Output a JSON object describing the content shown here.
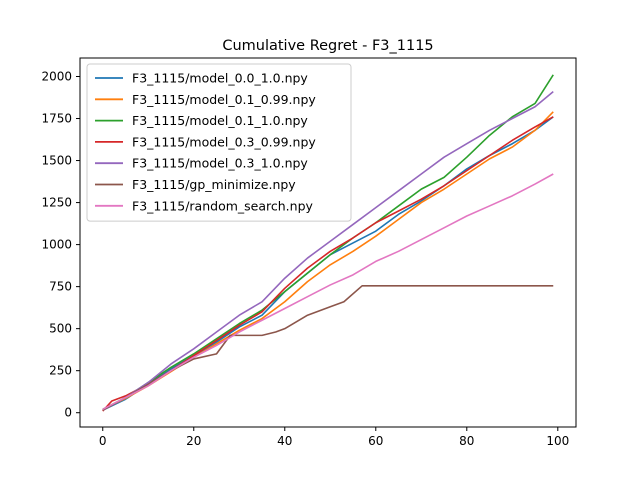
{
  "chart_data": {
    "type": "line",
    "title": "Cumulative Regret - F3_1115",
    "xlabel": "",
    "ylabel": "",
    "xlim": [
      -5,
      104
    ],
    "ylim": [
      -85,
      2110
    ],
    "xticks": [
      0,
      20,
      40,
      60,
      80,
      100
    ],
    "yticks": [
      0,
      250,
      500,
      750,
      1000,
      1250,
      1500,
      1750,
      2000
    ],
    "grid": false,
    "legend_position": "top-left",
    "series": [
      {
        "name": "F3_1115/model_0.0_1.0.npy",
        "color": "#1f77b4",
        "points": [
          [
            0,
            15
          ],
          [
            5,
            80
          ],
          [
            10,
            170
          ],
          [
            15,
            260
          ],
          [
            20,
            340
          ],
          [
            25,
            420
          ],
          [
            30,
            510
          ],
          [
            35,
            580
          ],
          [
            40,
            720
          ],
          [
            45,
            830
          ],
          [
            50,
            940
          ],
          [
            55,
            1010
          ],
          [
            60,
            1080
          ],
          [
            65,
            1180
          ],
          [
            70,
            1260
          ],
          [
            75,
            1350
          ],
          [
            80,
            1450
          ],
          [
            85,
            1530
          ],
          [
            90,
            1600
          ],
          [
            95,
            1680
          ],
          [
            99,
            1760
          ]
        ]
      },
      {
        "name": "F3_1115/model_0.1_0.99.npy",
        "color": "#ff7f0e",
        "points": [
          [
            0,
            20
          ],
          [
            5,
            85
          ],
          [
            10,
            160
          ],
          [
            15,
            245
          ],
          [
            20,
            330
          ],
          [
            25,
            410
          ],
          [
            30,
            490
          ],
          [
            35,
            560
          ],
          [
            40,
            660
          ],
          [
            45,
            780
          ],
          [
            50,
            880
          ],
          [
            55,
            960
          ],
          [
            60,
            1050
          ],
          [
            65,
            1150
          ],
          [
            70,
            1250
          ],
          [
            75,
            1330
          ],
          [
            80,
            1420
          ],
          [
            85,
            1510
          ],
          [
            90,
            1580
          ],
          [
            95,
            1680
          ],
          [
            99,
            1790
          ]
        ]
      },
      {
        "name": "F3_1115/model_0.1_1.0.npy",
        "color": "#2ca02c",
        "points": [
          [
            0,
            20
          ],
          [
            5,
            90
          ],
          [
            10,
            180
          ],
          [
            15,
            270
          ],
          [
            20,
            350
          ],
          [
            25,
            440
          ],
          [
            30,
            530
          ],
          [
            35,
            610
          ],
          [
            40,
            720
          ],
          [
            45,
            830
          ],
          [
            50,
            940
          ],
          [
            55,
            1040
          ],
          [
            60,
            1130
          ],
          [
            65,
            1230
          ],
          [
            70,
            1330
          ],
          [
            75,
            1400
          ],
          [
            80,
            1520
          ],
          [
            85,
            1650
          ],
          [
            90,
            1760
          ],
          [
            95,
            1840
          ],
          [
            99,
            2010
          ]
        ]
      },
      {
        "name": "F3_1115/model_0.3_0.99.npy",
        "color": "#d62728",
        "points": [
          [
            0,
            10
          ],
          [
            2,
            70
          ],
          [
            5,
            100
          ],
          [
            10,
            170
          ],
          [
            15,
            250
          ],
          [
            20,
            340
          ],
          [
            25,
            430
          ],
          [
            30,
            520
          ],
          [
            35,
            600
          ],
          [
            40,
            740
          ],
          [
            45,
            860
          ],
          [
            50,
            960
          ],
          [
            55,
            1040
          ],
          [
            60,
            1130
          ],
          [
            65,
            1200
          ],
          [
            70,
            1270
          ],
          [
            75,
            1350
          ],
          [
            80,
            1440
          ],
          [
            85,
            1530
          ],
          [
            90,
            1620
          ],
          [
            95,
            1700
          ],
          [
            99,
            1760
          ]
        ]
      },
      {
        "name": "F3_1115/model_0.3_1.0.npy",
        "color": "#9467bd",
        "points": [
          [
            0,
            15
          ],
          [
            5,
            90
          ],
          [
            10,
            180
          ],
          [
            15,
            290
          ],
          [
            20,
            380
          ],
          [
            25,
            480
          ],
          [
            30,
            580
          ],
          [
            35,
            660
          ],
          [
            40,
            800
          ],
          [
            45,
            920
          ],
          [
            50,
            1020
          ],
          [
            55,
            1120
          ],
          [
            60,
            1220
          ],
          [
            65,
            1320
          ],
          [
            70,
            1420
          ],
          [
            75,
            1520
          ],
          [
            80,
            1600
          ],
          [
            85,
            1680
          ],
          [
            90,
            1750
          ],
          [
            95,
            1820
          ],
          [
            99,
            1910
          ]
        ]
      },
      {
        "name": "F3_1115/gp_minimize.npy",
        "color": "#8c564b",
        "points": [
          [
            0,
            15
          ],
          [
            5,
            90
          ],
          [
            10,
            170
          ],
          [
            15,
            250
          ],
          [
            20,
            320
          ],
          [
            25,
            350
          ],
          [
            28,
            460
          ],
          [
            30,
            460
          ],
          [
            35,
            460
          ],
          [
            38,
            480
          ],
          [
            40,
            500
          ],
          [
            45,
            580
          ],
          [
            50,
            630
          ],
          [
            53,
            660
          ],
          [
            57,
            755
          ],
          [
            60,
            755
          ],
          [
            70,
            755
          ],
          [
            80,
            755
          ],
          [
            90,
            755
          ],
          [
            99,
            755
          ]
        ]
      },
      {
        "name": "F3_1115/random_search.npy",
        "color": "#e377c2",
        "points": [
          [
            0,
            20
          ],
          [
            5,
            90
          ],
          [
            10,
            160
          ],
          [
            15,
            250
          ],
          [
            20,
            330
          ],
          [
            25,
            400
          ],
          [
            30,
            480
          ],
          [
            35,
            550
          ],
          [
            40,
            620
          ],
          [
            45,
            690
          ],
          [
            50,
            760
          ],
          [
            55,
            820
          ],
          [
            60,
            900
          ],
          [
            65,
            960
          ],
          [
            70,
            1030
          ],
          [
            75,
            1100
          ],
          [
            80,
            1170
          ],
          [
            85,
            1230
          ],
          [
            90,
            1290
          ],
          [
            95,
            1360
          ],
          [
            99,
            1420
          ]
        ]
      }
    ]
  }
}
